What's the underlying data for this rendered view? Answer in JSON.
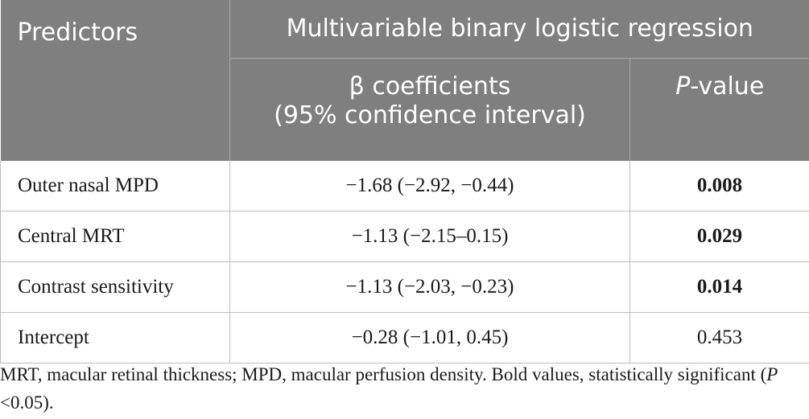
{
  "header": {
    "predictors": "Predictors",
    "group_title": "Multivariable binary logistic regression",
    "beta_line1": "β coefficients",
    "beta_line2": "(95% confidence interval)",
    "p_italic": "P",
    "p_rest": "-value"
  },
  "rows": [
    {
      "predictor": "Outer nasal MPD",
      "beta": "−1.68 (−2.92, −0.44)",
      "p": "0.008",
      "significant": true
    },
    {
      "predictor": "Central MRT",
      "beta": "−1.13 (−2.15–0.15)",
      "p": "0.029",
      "significant": true
    },
    {
      "predictor": "Contrast sensitivity",
      "beta": "−1.13 (−2.03, −0.23)",
      "p": "0.014",
      "significant": true
    },
    {
      "predictor": "Intercept",
      "beta": "−0.28 (−1.01, 0.45)",
      "p": "0.453",
      "significant": false
    }
  ],
  "footnote": {
    "text1": "MRT, macular retinal thickness; MPD, macular perfusion density. Bold values, statistically significant (",
    "p_italic": "P",
    "text2": " <0.05)."
  },
  "colors": {
    "header_bg": "#7f7f7f",
    "header_text": "#ffffff"
  }
}
